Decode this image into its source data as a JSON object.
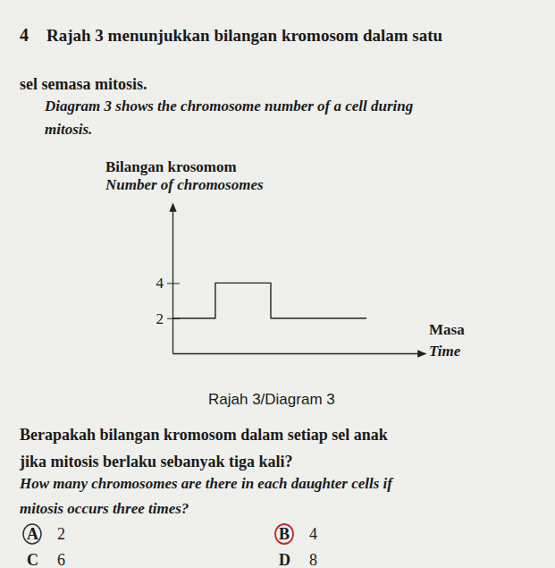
{
  "question": {
    "number": "4",
    "stem_ms": [
      "Rajah 3 menunjukkan bilangan kromosom dalam satu",
      "sel semasa mitosis."
    ],
    "stem_en": [
      "Diagram 3 shows the chromosome number of a cell during",
      "mitosis."
    ],
    "caption": "Rajah 3/Diagram 3",
    "ask_ms": [
      "Berapakah bilangan kromosom dalam setiap sel anak",
      "jika mitosis berlaku sebanyak tiga kali?"
    ],
    "ask_en": [
      "How many chromosomes are there in each daughter cells if",
      "mitosis occurs three times?"
    ],
    "options": [
      {
        "letter": "A",
        "text": "2"
      },
      {
        "letter": "B",
        "text": "4"
      },
      {
        "letter": "C",
        "text": "6"
      },
      {
        "letter": "D",
        "text": "8"
      }
    ]
  },
  "chart_data": {
    "type": "line",
    "y_label_ms": "Bilangan krosomom",
    "y_label_en": "Number of chromosomes",
    "x_label_ms": "Masa",
    "x_label_en": "Time",
    "x": [
      0,
      1.7,
      3.9,
      7.7
    ],
    "values": [
      2,
      4,
      2,
      2
    ],
    "line_style": "step",
    "xlim": [
      0,
      10
    ],
    "ylim": [
      0,
      8.5
    ],
    "yticks": [
      2,
      4
    ],
    "tick_labels": "y"
  }
}
